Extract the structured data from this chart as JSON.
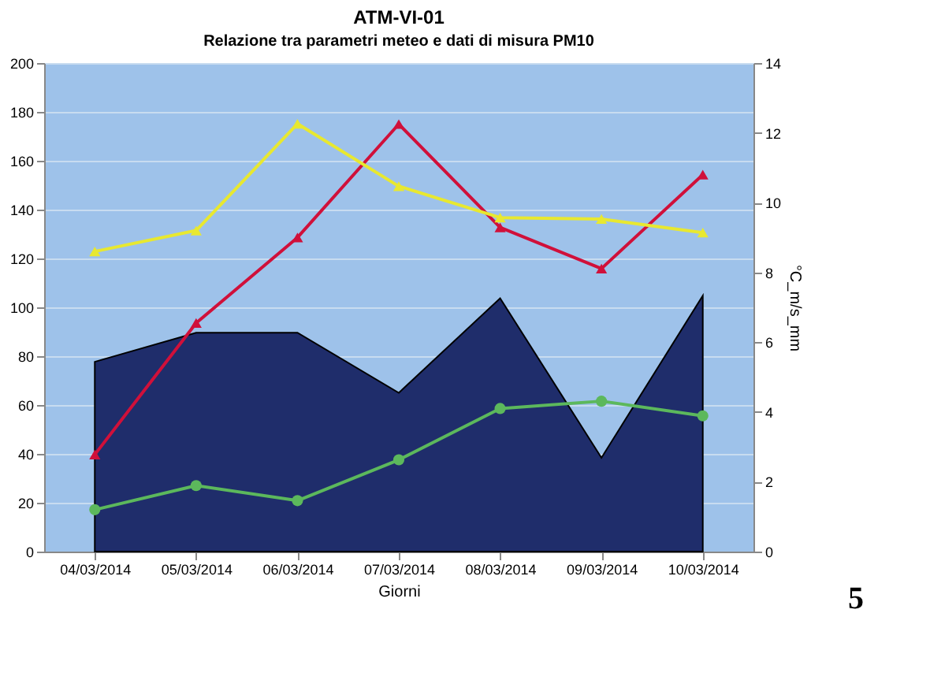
{
  "chart_data": {
    "type": "area",
    "title": "ATM-VI-01",
    "subtitle": "Relazione tra parametri meteo e dati di misura PM10",
    "xlabel": "Giorni",
    "y2label": "°C_m/s_mm",
    "categories": [
      "04/03/2014",
      "05/03/2014",
      "06/03/2014",
      "07/03/2014",
      "08/03/2014",
      "09/03/2014",
      "10/03/2014"
    ],
    "series": [
      {
        "color": "#1f2d6b",
        "values": [
          77.7,
          89.6,
          89.6,
          65,
          103.7,
          38.4,
          104.8
        ]
      },
      {
        "type": "line",
        "axis": "y2",
        "color": "#d0103a",
        "marker": "triangle",
        "values": [
          2.78,
          6.55,
          9.0,
          12.25,
          9.29,
          8.11,
          10.8
        ]
      },
      {
        "type": "line",
        "axis": "y2",
        "color": "#5cb85c",
        "marker": "circle",
        "values": [
          1.2,
          1.89,
          1.46,
          2.63,
          4.1,
          4.31,
          3.89
        ]
      },
      {
        "type": "line",
        "axis": "y2",
        "color": "#e8e830",
        "marker": "triangle",
        "values": [
          8.6,
          9.2,
          12.26,
          10.47,
          9.57,
          9.53,
          9.14
        ]
      }
    ],
    "ylim": [
      0,
      200
    ],
    "yticks": [
      0,
      20,
      40,
      60,
      80,
      100,
      120,
      140,
      160,
      180,
      200
    ],
    "y2lim": [
      0,
      14
    ],
    "y2ticks": [
      0,
      2,
      4,
      6,
      8,
      10,
      12,
      14
    ],
    "grid": "y",
    "legend": false,
    "annotations": [
      "5"
    ]
  }
}
